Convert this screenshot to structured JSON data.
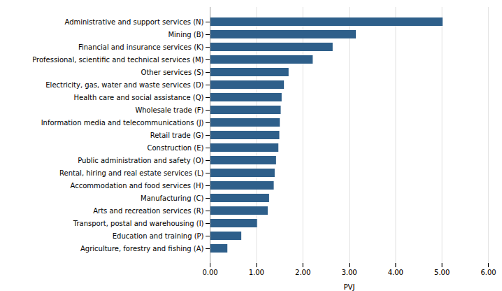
{
  "chart_data": {
    "type": "bar",
    "orientation": "horizontal",
    "categories": [
      "Administrative and support services (N)",
      "Mining (B)",
      "Financial and insurance services (K)",
      "Professional, scientific and technical services (M)",
      "Other services (S)",
      "Electricity, gas, water and waste services (D)",
      "Health care and social assistance (Q)",
      "Wholesale trade (F)",
      "Information media and telecommunications (J)",
      "Retail trade (G)",
      "Construction (E)",
      "Public administration and safety (O)",
      "Rental, hiring and real estate services (L)",
      "Accommodation and food services (H)",
      "Manufacturing (C)",
      "Arts and recreation services (R)",
      "Transport, postal and warehousing (I)",
      "Education and training (P)",
      "Agriculture, forestry and fishing (A)"
    ],
    "values": [
      5.02,
      3.15,
      2.65,
      2.22,
      1.7,
      1.6,
      1.55,
      1.53,
      1.51,
      1.5,
      1.48,
      1.43,
      1.4,
      1.38,
      1.28,
      1.25,
      1.02,
      0.68,
      0.38
    ],
    "color": "#2E5F8A",
    "xlabel": "PVJ",
    "xlim": [
      0,
      6.0
    ],
    "xticks": [
      {
        "value": 0.0,
        "label": "0.00"
      },
      {
        "value": 1.0,
        "label": "1.00"
      },
      {
        "value": 2.0,
        "label": "2.00"
      },
      {
        "value": 3.0,
        "label": "3.00"
      },
      {
        "value": 4.0,
        "label": "4.00"
      },
      {
        "value": 5.0,
        "label": "5.00"
      },
      {
        "value": 6.0,
        "label": "6.00"
      }
    ],
    "grid": true
  }
}
